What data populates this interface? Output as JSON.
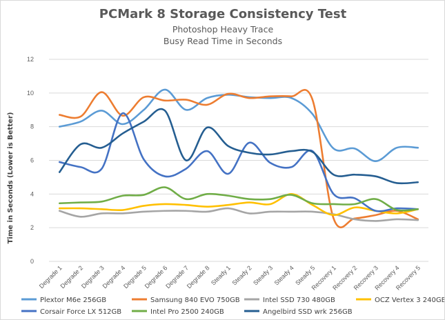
{
  "chart_data": {
    "type": "line",
    "title": "PCMark 8 Storage Consistency Test",
    "subtitle_lines": [
      "Photoshop Heavy Trace",
      "Busy Read Time in Seconds"
    ],
    "ylabel": "Time in Seconds (Lower is Better)",
    "xlabel": "",
    "ylim": [
      0,
      12
    ],
    "yticks": [
      0,
      2,
      4,
      6,
      8,
      10,
      12
    ],
    "grid": true,
    "legend_position": "bottom",
    "categories": [
      "Degrade 1",
      "Degrade 2",
      "Degrade 3",
      "Degrade 4",
      "Degrade 5",
      "Degrade 6",
      "Degrade 7",
      "Degrade 8",
      "Steady 1",
      "Steady 2",
      "Steady 3",
      "Steady 4",
      "Steady 5",
      "Recovery 1",
      "Recovery 2",
      "Recovery 3",
      "Recovery 4",
      "Recovery 5"
    ],
    "series": [
      {
        "name": "Plextor M6e 256GB",
        "color": "#5b9bd5",
        "values": [
          8.0,
          8.3,
          8.95,
          8.15,
          9.0,
          10.2,
          9.0,
          9.7,
          9.9,
          9.75,
          9.7,
          9.7,
          8.75,
          6.7,
          6.7,
          5.95,
          6.75,
          6.75
        ]
      },
      {
        "name": "Samsung 840 EVO 750GB",
        "color": "#ed7d31",
        "values": [
          8.7,
          8.6,
          10.05,
          8.65,
          9.75,
          9.55,
          9.6,
          9.3,
          9.95,
          9.7,
          9.8,
          9.8,
          9.6,
          2.55,
          2.55,
          2.75,
          3.0,
          2.5
        ]
      },
      {
        "name": "Intel SSD 730 480GB",
        "color": "#a5a5a5",
        "values": [
          3.0,
          2.65,
          2.85,
          2.85,
          2.95,
          3.0,
          3.0,
          2.95,
          3.15,
          2.85,
          2.95,
          2.95,
          2.95,
          2.8,
          2.5,
          2.4,
          2.5,
          2.45
        ]
      },
      {
        "name": "OCZ Vertex 3 240GB",
        "color": "#ffc000",
        "values": [
          3.15,
          3.15,
          3.1,
          3.05,
          3.3,
          3.4,
          3.35,
          3.25,
          3.35,
          3.5,
          3.4,
          4.0,
          3.35,
          2.75,
          3.2,
          3.0,
          2.85,
          3.1
        ]
      },
      {
        "name": "Corsair Force LX 512GB",
        "color": "#4472c4",
        "values": [
          5.9,
          5.6,
          5.5,
          8.8,
          6.05,
          5.05,
          5.5,
          6.55,
          5.2,
          7.05,
          5.85,
          5.6,
          6.55,
          4.0,
          3.75,
          3.0,
          3.15,
          3.1
        ]
      },
      {
        "name": "Intel Pro 2500 240GB",
        "color": "#70ad47",
        "values": [
          3.45,
          3.5,
          3.55,
          3.9,
          3.95,
          4.4,
          3.7,
          4.0,
          3.9,
          3.7,
          3.7,
          3.95,
          3.45,
          3.4,
          3.4,
          3.7,
          3.05,
          3.1
        ]
      },
      {
        "name": "Angelbird SSD wrk 256GB",
        "color": "#255e91",
        "values": [
          5.3,
          6.95,
          6.75,
          7.6,
          8.3,
          8.95,
          6.0,
          7.95,
          6.85,
          6.45,
          6.35,
          6.55,
          6.5,
          5.15,
          5.15,
          5.05,
          4.65,
          4.7
        ]
      }
    ]
  }
}
